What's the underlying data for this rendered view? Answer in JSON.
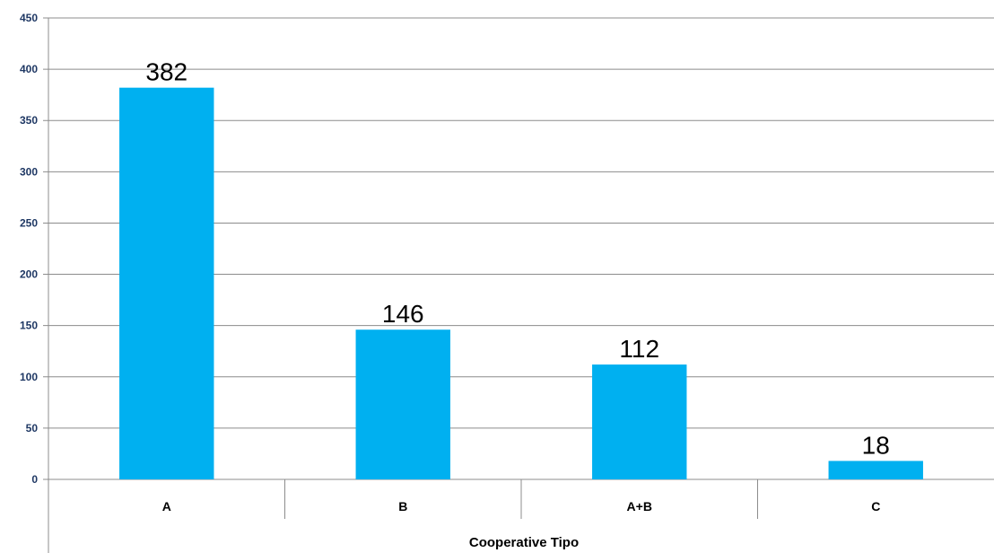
{
  "chart_data": {
    "type": "bar",
    "title": "",
    "xlabel": "Cooperative Tipo",
    "ylabel": "",
    "categories": [
      "A",
      "B",
      "A+B",
      "C"
    ],
    "values": [
      382,
      146,
      112,
      18
    ],
    "data_labels": [
      "382",
      "146",
      "112",
      "18"
    ],
    "ylim": [
      0,
      450
    ],
    "yticks": [
      0,
      50,
      100,
      150,
      200,
      250,
      300,
      350,
      400,
      450
    ],
    "ytick_labels": [
      "0",
      "50",
      "100",
      "150",
      "200",
      "250",
      "300",
      "350",
      "400",
      "450"
    ],
    "grid": true,
    "legend": "none",
    "bar_color": "#00b0f0",
    "grid_color": "#8c8c8c",
    "tick_label_color": "#1f3864"
  }
}
